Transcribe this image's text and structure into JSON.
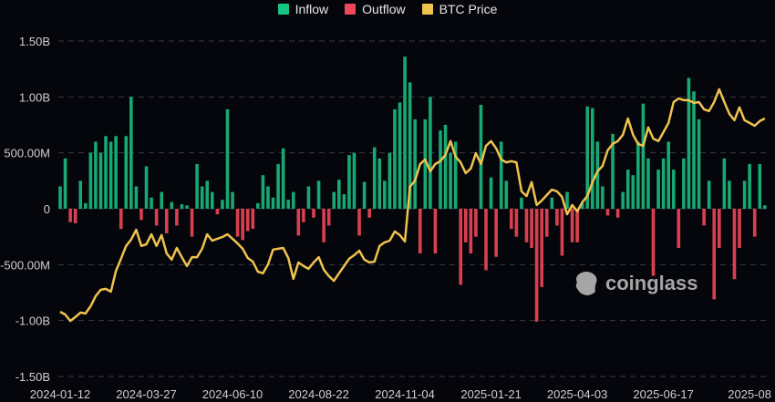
{
  "chart_data": {
    "type": "bar",
    "title": "",
    "legend": {
      "position": "top-center",
      "items": [
        {
          "label": "Inflow",
          "color": "#16c784"
        },
        {
          "label": "Outflow",
          "color": "#f0485a"
        },
        {
          "label": "BTC Price",
          "color": "#f0c24e"
        }
      ]
    },
    "colors": {
      "inflow": "#17a873",
      "outflow": "#d9404f",
      "price": "#f0c24e",
      "grid": "#3a3a40",
      "text": "#cfcfcf",
      "background": "#05060b"
    },
    "y_ticks": [
      "1.50B",
      "1.00B",
      "500.00M",
      "0",
      "-500.00M",
      "-1.00B",
      "-1.50B"
    ],
    "y_tick_values": [
      1500,
      1000,
      500,
      0,
      -500,
      -1000,
      -1500
    ],
    "ylim": [
      -1500,
      1500
    ],
    "y_unit": "USD millions",
    "x_ticks": [
      "2024-01-12",
      "2024-03-27",
      "2024-06-10",
      "2024-08-22",
      "2024-11-04",
      "2025-01-21",
      "2025-04-03",
      "2025-06-17",
      "2025-08"
    ],
    "x_tick_index": [
      0,
      17,
      34,
      51,
      68,
      85,
      102,
      119,
      136
    ],
    "grid": true,
    "net_flow": [
      200,
      450,
      -120,
      -130,
      250,
      50,
      500,
      600,
      500,
      650,
      600,
      650,
      -180,
      650,
      1000,
      200,
      -100,
      380,
      100,
      -150,
      150,
      -220,
      60,
      -150,
      40,
      30,
      -250,
      400,
      200,
      250,
      150,
      -50,
      80,
      890,
      150,
      -250,
      -280,
      -200,
      -180,
      50,
      300,
      200,
      100,
      400,
      540,
      80,
      150,
      -240,
      -120,
      200,
      -80,
      250,
      -300,
      -150,
      150,
      260,
      130,
      480,
      500,
      -240,
      240,
      -80,
      550,
      450,
      250,
      500,
      890,
      950,
      1360,
      1130,
      800,
      -400,
      800,
      1000,
      -400,
      700,
      750,
      500,
      600,
      -680,
      -300,
      -400,
      -250,
      930,
      -550,
      280,
      -430,
      600,
      250,
      -180,
      -250,
      100,
      -300,
      -350,
      -1010,
      -700,
      -250,
      100,
      -150,
      -420,
      150,
      -300,
      -300,
      50,
      915,
      900,
      600,
      200,
      -60,
      670,
      -80,
      150,
      350,
      300,
      600,
      940,
      450,
      -600,
      350,
      450,
      600,
      350,
      -350,
      450,
      1170,
      1050,
      800,
      -150,
      250,
      -810,
      -350,
      450,
      250,
      -630,
      -350,
      250,
      400,
      -250,
      400,
      30
    ],
    "btc_price": [
      42600,
      41600,
      39300,
      40700,
      42300,
      42000,
      44600,
      48200,
      50500,
      50800,
      49800,
      57300,
      61600,
      66200,
      68500,
      72000,
      66200,
      66800,
      70400,
      66200,
      70100,
      63500,
      61300,
      65500,
      62200,
      59000,
      62200,
      62200,
      65200,
      70400,
      68100,
      68800,
      69400,
      70400,
      68800,
      67100,
      65200,
      61900,
      60600,
      57000,
      56400,
      59600,
      64900,
      65200,
      65500,
      61900,
      54400,
      60300,
      59000,
      58000,
      60300,
      62200,
      57700,
      55400,
      53700,
      56400,
      59000,
      61600,
      62900,
      64500,
      61300,
      60300,
      60600,
      66200,
      67500,
      68100,
      71400,
      70100,
      67800,
      87400,
      89700,
      95600,
      97200,
      93000,
      95600,
      96600,
      98900,
      103800,
      98200,
      96200,
      92300,
      94000,
      99500,
      95600,
      102100,
      103800,
      101200,
      97200,
      96200,
      96600,
      96200,
      85800,
      84100,
      89100,
      80900,
      82500,
      84500,
      86400,
      85800,
      83800,
      77600,
      80900,
      78600,
      81900,
      84100,
      89100,
      93000,
      94900,
      100500,
      102800,
      103800,
      106100,
      111900,
      106100,
      102800,
      102100,
      108700,
      104700,
      103800,
      107000,
      110300,
      117800,
      119100,
      118500,
      118500,
      117500,
      117800,
      115200,
      114600,
      117800,
      122400,
      117800,
      113600,
      111300,
      115900,
      111300,
      110300,
      109300,
      111000,
      111900
    ],
    "price_axis_range": [
      19400,
      139700
    ],
    "price_axis_visible": false
  },
  "watermark": {
    "text": "coinglass"
  }
}
